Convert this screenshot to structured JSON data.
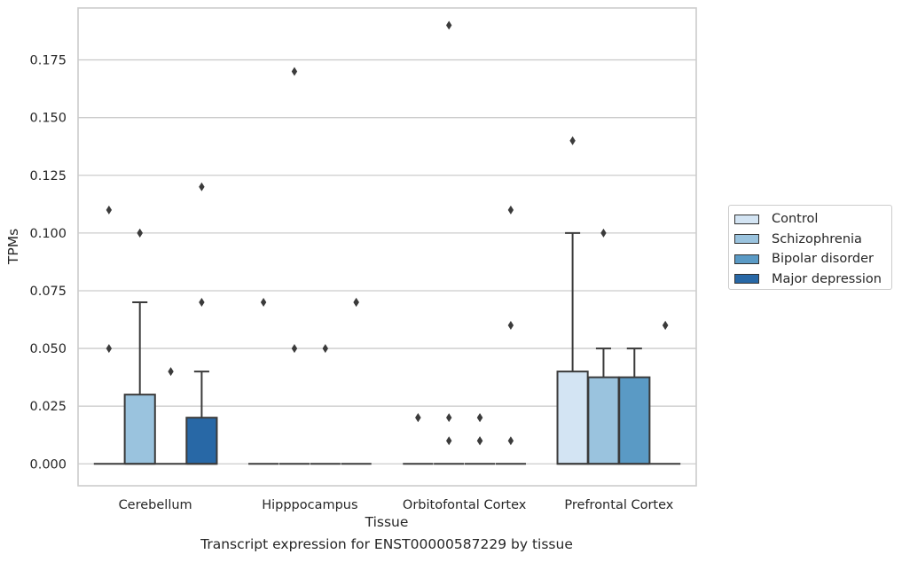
{
  "caption": "Transcript expression for ENST00000587229 by tissue",
  "chart_data": {
    "type": "box",
    "xlabel": "Tissue",
    "ylabel": "TPMs",
    "categories": [
      "Cerebellum",
      "Hipppocampus",
      "Orbitofontal Cortex",
      "Prefrontal Cortex"
    ],
    "ylim": [
      -0.0095,
      0.1975
    ],
    "yticks": [
      0.0,
      0.025,
      0.05,
      0.075,
      0.1,
      0.125,
      0.15,
      0.175
    ],
    "ytick_labels": [
      "0.000",
      "0.025",
      "0.050",
      "0.075",
      "0.100",
      "0.125",
      "0.150",
      "0.175"
    ],
    "grid": "horizontal",
    "legend_position": "right",
    "series": [
      {
        "name": "Control",
        "color": "#d3e4f3",
        "boxes": [
          {
            "q1": 0,
            "median": 0,
            "q3": 0,
            "whisker_low": 0,
            "whisker_high": 0,
            "outliers": [
              0.05,
              0.11
            ]
          },
          {
            "q1": 0,
            "median": 0,
            "q3": 0,
            "whisker_low": 0,
            "whisker_high": 0,
            "outliers": [
              0.07
            ]
          },
          {
            "q1": 0,
            "median": 0,
            "q3": 0,
            "whisker_low": 0,
            "whisker_high": 0,
            "outliers": [
              0.02,
              0.02
            ]
          },
          {
            "q1": 0,
            "median": 0,
            "q3": 0.04,
            "whisker_low": 0,
            "whisker_high": 0.1,
            "outliers": [
              0.14
            ]
          }
        ]
      },
      {
        "name": "Schizophrenia",
        "color": "#9ac3de",
        "boxes": [
          {
            "q1": 0,
            "median": 0,
            "q3": 0.03,
            "whisker_low": 0,
            "whisker_high": 0.07,
            "outliers": [
              0.1,
              0.1
            ]
          },
          {
            "q1": 0,
            "median": 0,
            "q3": 0,
            "whisker_low": 0,
            "whisker_high": 0,
            "outliers": [
              0.05,
              0.17
            ]
          },
          {
            "q1": 0,
            "median": 0,
            "q3": 0,
            "whisker_low": 0,
            "whisker_high": 0,
            "outliers": [
              0.01,
              0.02,
              0.19
            ]
          },
          {
            "q1": 0,
            "median": 0,
            "q3": 0.0375,
            "whisker_low": 0,
            "whisker_high": 0.05,
            "outliers": [
              0.1
            ]
          }
        ]
      },
      {
        "name": "Bipolar disorder",
        "color": "#5a9ac5",
        "boxes": [
          {
            "q1": 0,
            "median": 0,
            "q3": 0,
            "whisker_low": 0,
            "whisker_high": 0,
            "outliers": [
              0.04
            ]
          },
          {
            "q1": 0,
            "median": 0,
            "q3": 0,
            "whisker_low": 0,
            "whisker_high": 0,
            "outliers": [
              0.05
            ]
          },
          {
            "q1": 0,
            "median": 0,
            "q3": 0,
            "whisker_low": 0,
            "whisker_high": 0,
            "outliers": [
              0.01,
              0.01,
              0.02,
              0.02
            ]
          },
          {
            "q1": 0,
            "median": 0,
            "q3": 0.0375,
            "whisker_low": 0,
            "whisker_high": 0.05,
            "outliers": []
          }
        ]
      },
      {
        "name": "Major depression",
        "color": "#2868a6",
        "boxes": [
          {
            "q1": 0,
            "median": 0,
            "q3": 0.02,
            "whisker_low": 0,
            "whisker_high": 0.04,
            "outliers": [
              0.07,
              0.12
            ]
          },
          {
            "q1": 0,
            "median": 0,
            "q3": 0,
            "whisker_low": 0,
            "whisker_high": 0,
            "outliers": [
              0.07,
              0.07
            ]
          },
          {
            "q1": 0,
            "median": 0,
            "q3": 0,
            "whisker_low": 0,
            "whisker_high": 0,
            "outliers": [
              0.01,
              0.06,
              0.11
            ]
          },
          {
            "q1": 0,
            "median": 0,
            "q3": 0,
            "whisker_low": 0,
            "whisker_high": 0,
            "outliers": [
              0.06,
              0.06
            ]
          }
        ]
      }
    ]
  }
}
